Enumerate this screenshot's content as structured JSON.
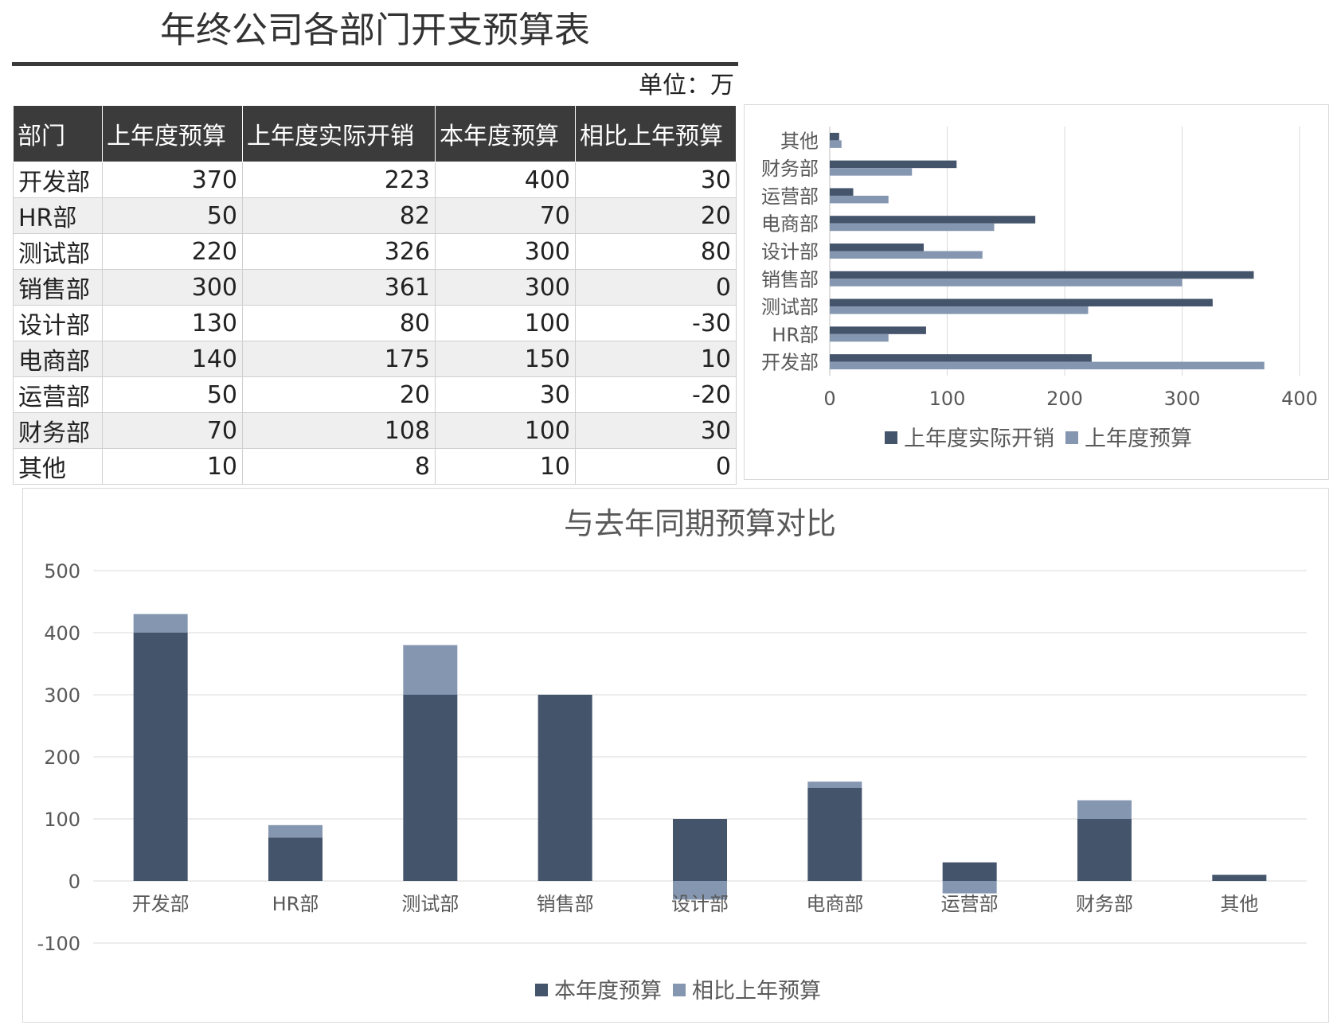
{
  "header": {
    "title": "年终公司各部门开支预算表",
    "unit": "单位：万"
  },
  "table": {
    "columns": [
      "部门",
      "上年度预算",
      "上年度实际开销",
      "本年度预算",
      "相比上年预算"
    ],
    "rows": [
      [
        "开发部",
        "370",
        "223",
        "400",
        "30"
      ],
      [
        "HR部",
        "50",
        "82",
        "70",
        "20"
      ],
      [
        "测试部",
        "220",
        "326",
        "300",
        "80"
      ],
      [
        "销售部",
        "300",
        "361",
        "300",
        "0"
      ],
      [
        "设计部",
        "130",
        "80",
        "100",
        "-30"
      ],
      [
        "电商部",
        "140",
        "175",
        "150",
        "10"
      ],
      [
        "运营部",
        "50",
        "20",
        "30",
        "-20"
      ],
      [
        "财务部",
        "70",
        "108",
        "100",
        "30"
      ],
      [
        "其他",
        "10",
        "8",
        "10",
        "0"
      ]
    ]
  },
  "colors": {
    "dark": "#44546a",
    "light": "#8496b0",
    "grid": "#d9d9d9",
    "header_bg": "#3b3b3b"
  },
  "chart_data": [
    {
      "type": "bar",
      "orientation": "horizontal",
      "title": "",
      "categories": [
        "开发部",
        "HR部",
        "测试部",
        "销售部",
        "设计部",
        "电商部",
        "运营部",
        "财务部",
        "其他"
      ],
      "series": [
        {
          "name": "上年度实际开销",
          "values": [
            223,
            82,
            326,
            361,
            80,
            175,
            20,
            108,
            8
          ]
        },
        {
          "name": "上年度预算",
          "values": [
            370,
            50,
            220,
            300,
            130,
            140,
            50,
            70,
            10
          ]
        }
      ],
      "xlim": [
        0,
        400
      ],
      "xticks": [
        "0",
        "100",
        "200",
        "300",
        "400"
      ],
      "grid": true,
      "legend": "bottom"
    },
    {
      "type": "bar",
      "stacked": true,
      "title": "与去年同期预算对比",
      "categories": [
        "开发部",
        "HR部",
        "测试部",
        "销售部",
        "设计部",
        "电商部",
        "运营部",
        "财务部",
        "其他"
      ],
      "series": [
        {
          "name": "本年度预算",
          "values": [
            400,
            70,
            300,
            300,
            100,
            150,
            30,
            100,
            10
          ]
        },
        {
          "name": "相比上年预算",
          "values": [
            30,
            20,
            80,
            0,
            -30,
            10,
            -20,
            30,
            0
          ]
        }
      ],
      "ylim": [
        -100,
        500
      ],
      "yticks": [
        "500",
        "400",
        "300",
        "200",
        "100",
        "0",
        "-100"
      ],
      "grid": true,
      "legend": "bottom"
    }
  ]
}
